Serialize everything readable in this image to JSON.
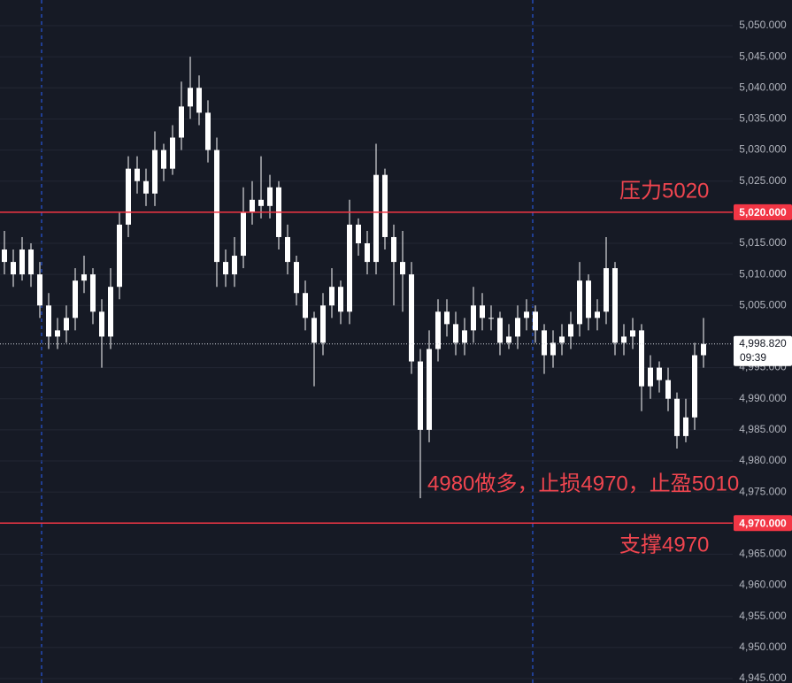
{
  "chart_data": {
    "type": "candlestick",
    "color": "#ffffff",
    "ylim": [
      4945,
      5050
    ],
    "yticks": [
      {
        "value": 5050,
        "label": "5,050.000"
      },
      {
        "value": 5045,
        "label": "5,045.000"
      },
      {
        "value": 5040,
        "label": "5,040.000"
      },
      {
        "value": 5035,
        "label": "5,035.000"
      },
      {
        "value": 5030,
        "label": "5,030.000"
      },
      {
        "value": 5025,
        "label": "5,025.000"
      },
      {
        "value": 5015,
        "label": "5,015.000"
      },
      {
        "value": 5010,
        "label": "5,010.000"
      },
      {
        "value": 5005,
        "label": "5,005.000"
      },
      {
        "value": 4995,
        "label": "4,995.000"
      },
      {
        "value": 4990,
        "label": "4,990.000"
      },
      {
        "value": 4985,
        "label": "4,985.000"
      },
      {
        "value": 4980,
        "label": "4,980.000"
      },
      {
        "value": 4975,
        "label": "4,975.000"
      },
      {
        "value": 4965,
        "label": "4,965.000"
      },
      {
        "value": 4960,
        "label": "4,960.000"
      },
      {
        "value": 4955,
        "label": "4,955.000"
      },
      {
        "value": 4950,
        "label": "4,950.000"
      },
      {
        "value": 4945,
        "label": "4,945.000"
      }
    ],
    "open": [
      5014,
      5012,
      5010,
      5014,
      5010,
      5005,
      5000,
      5001,
      5003,
      5009,
      5010,
      5004,
      5000,
      5008,
      5018,
      5027,
      5025,
      5023,
      5030,
      5027,
      5032,
      5037,
      5040,
      5036,
      5030,
      5012,
      5010,
      5013,
      5020,
      5022,
      5021,
      5024,
      5016,
      5012,
      5007,
      5003,
      4999,
      5005,
      5008,
      5004,
      5018,
      5015,
      5012,
      5026,
      5016,
      5012,
      5010,
      4996,
      4985,
      4998,
      5004,
      5002,
      4999,
      5001,
      5005,
      5003,
      5003,
      4999,
      5000,
      5003,
      5004,
      5001,
      4997,
      4999,
      5000,
      5002,
      5009,
      5003,
      5004,
      5011,
      4999,
      5000,
      5001,
      4992,
      4995,
      4993,
      4990,
      4984,
      4987,
      4997
    ],
    "high": [
      5017,
      5014,
      5016,
      5015,
      5012,
      5007,
      5003,
      5005,
      5011,
      5013,
      5011,
      5006,
      5011,
      5020,
      5029,
      5029,
      5027,
      5033,
      5031,
      5034,
      5041,
      5045,
      5042,
      5038,
      5032,
      5014,
      5016,
      5024,
      5025,
      5029,
      5026,
      5025,
      5018,
      5013,
      5009,
      5004,
      5007,
      5011,
      5009,
      5022,
      5019,
      5017,
      5031,
      5027,
      5018,
      5017,
      5012,
      4998,
      5001,
      5006,
      5006,
      5004,
      5003,
      5008,
      5007,
      5005,
      5004,
      5002,
      5005,
      5006,
      5005,
      5002,
      5001,
      5002,
      5004,
      5012,
      5010,
      5006,
      5016,
      5012,
      5002,
      5003,
      5002,
      4997,
      4996,
      4995,
      4991,
      4990,
      4999,
      5003
    ],
    "low": [
      5010,
      5008,
      5009,
      5008,
      5003,
      4998,
      4998,
      4999,
      5001,
      5007,
      5002,
      4995,
      4998,
      5006,
      5016,
      5023,
      5021,
      5021,
      5025,
      5026,
      5030,
      5035,
      5034,
      5028,
      5008,
      5008,
      5008,
      5011,
      5018,
      5019,
      5019,
      5014,
      5010,
      5005,
      5001,
      4992,
      4997,
      5003,
      5002,
      5002,
      5013,
      5010,
      5010,
      5014,
      5005,
      5004,
      4994,
      4974,
      4983,
      4996,
      5000,
      4997,
      4997,
      4999,
      5001,
      5001,
      4997,
      4998,
      4998,
      5001,
      4999,
      4994,
      4995,
      4997,
      4998,
      5000,
      5001,
      5001,
      5002,
      4997,
      4997,
      4998,
      4988,
      4990,
      4991,
      4988,
      4982,
      4983,
      4985,
      4995
    ],
    "close": [
      5012,
      5010,
      5014,
      5010,
      5005,
      5000,
      5001,
      5003,
      5009,
      5010,
      5004,
      5000,
      5008,
      5018,
      5027,
      5025,
      5023,
      5030,
      5027,
      5032,
      5037,
      5040,
      5036,
      5030,
      5012,
      5010,
      5013,
      5020,
      5022,
      5021,
      5024,
      5016,
      5012,
      5007,
      5003,
      4999,
      5005,
      5008,
      5004,
      5018,
      5015,
      5012,
      5026,
      5016,
      5012,
      5010,
      4996,
      4985,
      4998,
      5004,
      5002,
      4999,
      5001,
      5005,
      5003,
      5003,
      4999,
      5000,
      5003,
      5004,
      5001,
      4997,
      4999,
      5000,
      5002,
      5009,
      5003,
      5004,
      5011,
      4999,
      5000,
      5001,
      4992,
      4995,
      4993,
      4990,
      4984,
      4987,
      4997,
      4998.82
    ],
    "levels": [
      {
        "value": 5020,
        "label": "5,020.000"
      },
      {
        "value": 4970,
        "label": "4,970.000"
      }
    ],
    "last_price": {
      "value": 4998.82,
      "label": "4,998.820",
      "countdown": "09:39"
    },
    "annotations": [
      "压力5020",
      "支撑4970",
      "4980做多，止损4970，止盈5010"
    ]
  }
}
